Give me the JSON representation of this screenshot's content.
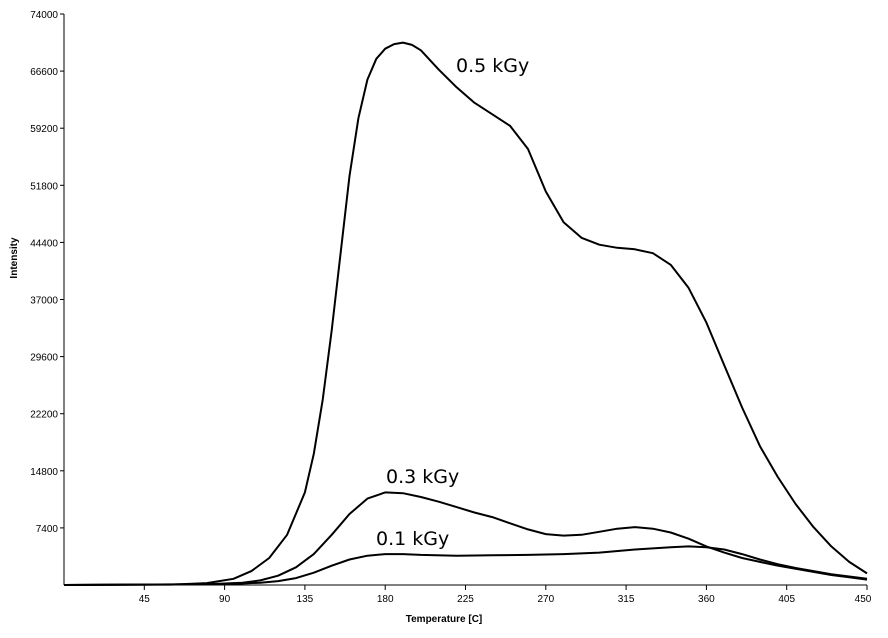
{
  "chart_data": {
    "type": "line",
    "title": "",
    "xlabel": "Temperature [C]",
    "ylabel": "Intensity",
    "xlim": [
      0,
      450
    ],
    "ylim": [
      0,
      74000
    ],
    "x_ticks": [
      45,
      90,
      135,
      180,
      225,
      270,
      315,
      360,
      405,
      450
    ],
    "y_ticks": [
      7400,
      14800,
      22200,
      29600,
      37000,
      44400,
      51800,
      59200,
      66600,
      74000
    ],
    "grid": false,
    "legend": "none",
    "series": [
      {
        "name": "0.5 kGy",
        "x": [
          0,
          60,
          80,
          95,
          105,
          115,
          125,
          135,
          140,
          145,
          150,
          155,
          160,
          165,
          170,
          175,
          180,
          185,
          190,
          195,
          200,
          210,
          220,
          230,
          240,
          250,
          260,
          270,
          280,
          290,
          300,
          310,
          320,
          330,
          340,
          350,
          360,
          370,
          380,
          390,
          400,
          410,
          420,
          430,
          440,
          450
        ],
        "values": [
          0,
          50,
          250,
          800,
          1800,
          3500,
          6500,
          12000,
          17000,
          24000,
          33000,
          43000,
          53000,
          60500,
          65500,
          68200,
          69500,
          70100,
          70300,
          70000,
          69300,
          66800,
          64500,
          62500,
          61000,
          59500,
          56500,
          51000,
          47000,
          45000,
          44100,
          43700,
          43500,
          43000,
          41500,
          38500,
          34000,
          28500,
          23000,
          18000,
          14000,
          10500,
          7500,
          5000,
          3000,
          1500
        ]
      },
      {
        "name": "0.3 kGy",
        "x": [
          0,
          80,
          100,
          110,
          120,
          130,
          140,
          150,
          160,
          170,
          180,
          190,
          200,
          210,
          220,
          230,
          240,
          250,
          260,
          270,
          280,
          290,
          300,
          310,
          320,
          330,
          340,
          350,
          360,
          370,
          380,
          390,
          400,
          410,
          420,
          430,
          440,
          450
        ],
        "values": [
          0,
          100,
          300,
          600,
          1200,
          2300,
          4000,
          6500,
          9200,
          11200,
          12000,
          11900,
          11400,
          10800,
          10100,
          9400,
          8800,
          8000,
          7200,
          6600,
          6400,
          6500,
          6900,
          7300,
          7500,
          7300,
          6800,
          6000,
          5000,
          4200,
          3500,
          3000,
          2500,
          2100,
          1700,
          1300,
          1000,
          700
        ]
      },
      {
        "name": "0.1 kGy",
        "x": [
          0,
          90,
          110,
          120,
          130,
          140,
          150,
          160,
          170,
          180,
          190,
          200,
          220,
          240,
          260,
          280,
          300,
          320,
          340,
          350,
          360,
          370,
          380,
          390,
          400,
          410,
          420,
          430,
          440,
          450
        ],
        "values": [
          0,
          100,
          300,
          500,
          900,
          1600,
          2500,
          3300,
          3800,
          4000,
          4000,
          3900,
          3800,
          3850,
          3900,
          4000,
          4200,
          4600,
          4900,
          5000,
          4900,
          4600,
          4000,
          3300,
          2700,
          2200,
          1800,
          1400,
          1100,
          800
        ]
      }
    ]
  }
}
